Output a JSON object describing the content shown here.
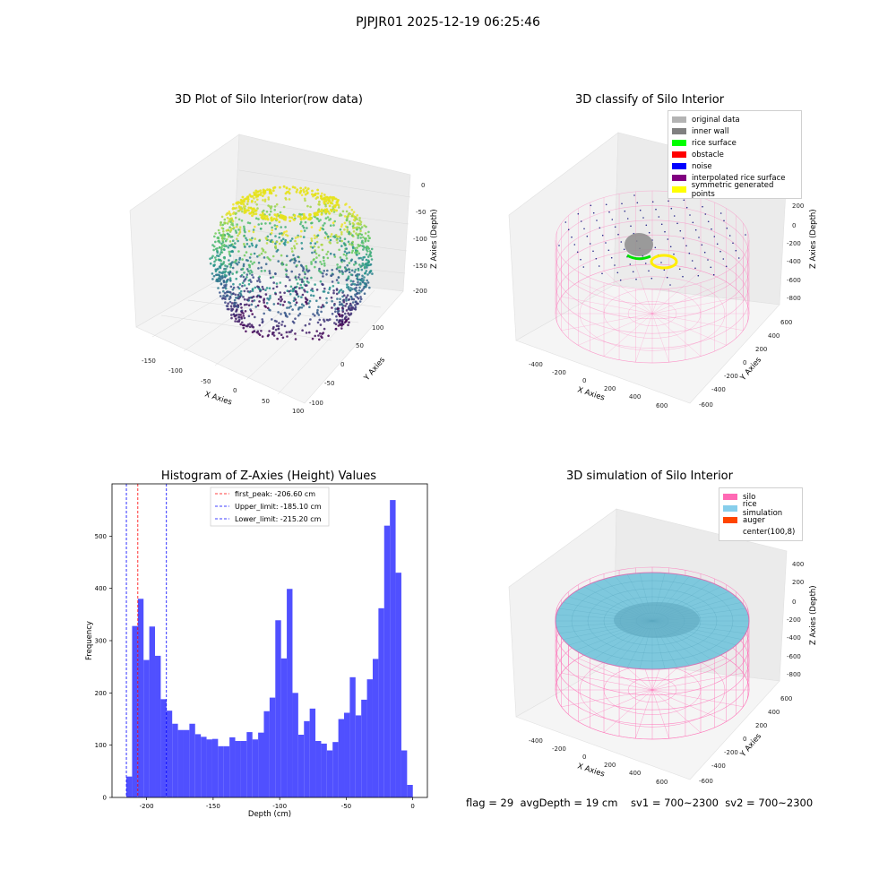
{
  "figure": {
    "title": "PJPJR01 2025-12-19 06:25:46",
    "caption": "flag = 29  avgDepth = 19 cm    sv1 = 700~2300  sv2 = 700~2300"
  },
  "panel_raw": {
    "title": "3D Plot of Silo Interior(row data)",
    "xlabel": "X Axies",
    "ylabel": "Y Axies",
    "zlabel": "Z Axies (Depth)",
    "x_ticks": [
      "-150",
      "-100",
      "-50",
      "0",
      "50",
      "100"
    ],
    "y_ticks": [
      "100",
      "50",
      "0",
      "-50",
      "-100"
    ],
    "z_ticks": [
      "0",
      "-50",
      "-100",
      "-150",
      "-200"
    ]
  },
  "panel_classify": {
    "title": "3D classify of Silo Interior",
    "xlabel": "X Axies",
    "ylabel": "Y Axies",
    "zlabel": "Z Axies (Depth)",
    "x_ticks": [
      "-400",
      "-200",
      "0",
      "200",
      "400",
      "600"
    ],
    "y_ticks": [
      "600",
      "400",
      "200",
      "0",
      "-200",
      "-400",
      "-600"
    ],
    "z_ticks": [
      "200",
      "0",
      "-200",
      "-400",
      "-600",
      "-800"
    ],
    "legend": [
      {
        "label": "original data",
        "color": "#b3b3b3"
      },
      {
        "label": "inner wall",
        "color": "#808080"
      },
      {
        "label": "rice surface",
        "color": "#00ff00"
      },
      {
        "label": "obstacle",
        "color": "#ff0000"
      },
      {
        "label": "noise",
        "color": "#0000ff"
      },
      {
        "label": "interpolated rice surface",
        "color": "#800080"
      },
      {
        "label": "symmetric generated points",
        "color": "#ffff00"
      }
    ]
  },
  "panel_sim": {
    "title": "3D simulation of Silo Interior",
    "xlabel": "X Axies",
    "ylabel": "Y Axies",
    "zlabel": "Z Axies (Depth)",
    "x_ticks": [
      "-400",
      "-200",
      "0",
      "200",
      "400",
      "600"
    ],
    "y_ticks": [
      "600",
      "400",
      "200",
      "0",
      "-200",
      "-400",
      "-600"
    ],
    "z_ticks": [
      "400",
      "200",
      "0",
      "-200",
      "-400",
      "-600",
      "-800"
    ],
    "legend": [
      {
        "label": "silo",
        "color": "#ff69b4"
      },
      {
        "label": "rice simulation",
        "color": "#87ceeb"
      },
      {
        "label": "auger",
        "color": "#ff4500"
      },
      {
        "label": "center(100,8)",
        "color": "#ffffff"
      }
    ]
  },
  "chart_data": {
    "type": "bar",
    "title": "Histogram of Z-Axies (Height) Values",
    "xlabel": "Depth (cm)",
    "ylabel": "Frequency",
    "xlim": [
      -226,
      11
    ],
    "ylim": [
      0,
      600
    ],
    "x_ticks": [
      -200,
      -150,
      -100,
      -50,
      0
    ],
    "y_ticks": [
      0,
      100,
      200,
      300,
      400,
      500
    ],
    "bar_color": "#4d4dff",
    "bin_start": -215.2,
    "bin_width": 4.305,
    "values": [
      40,
      328,
      380,
      263,
      327,
      271,
      188,
      166,
      141,
      129,
      129,
      141,
      121,
      116,
      111,
      112,
      98,
      98,
      115,
      108,
      108,
      125,
      111,
      124,
      165,
      191,
      339,
      266,
      399,
      200,
      120,
      146,
      170,
      108,
      103,
      90,
      106,
      150,
      162,
      230,
      157,
      187,
      226,
      265,
      362,
      520,
      569,
      430,
      90,
      24
    ],
    "vlines": [
      {
        "x": -206.6,
        "color": "#ff0000",
        "label": "first_peak: -206.60 cm"
      },
      {
        "x": -185.1,
        "color": "#0000ff",
        "label": "Upper_limit: -185.10 cm"
      },
      {
        "x": -215.2,
        "color": "#0000ff",
        "label": "Lower_limit: -215.20 cm"
      }
    ]
  }
}
